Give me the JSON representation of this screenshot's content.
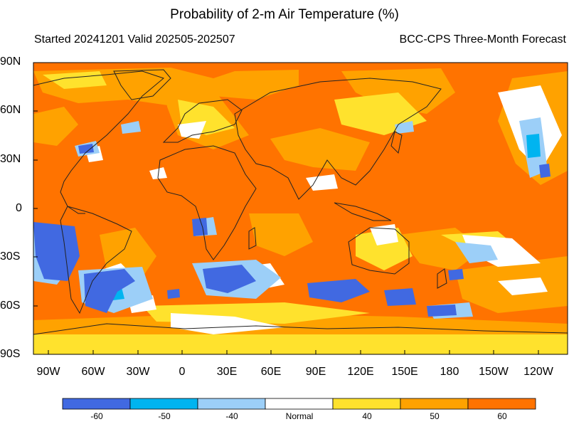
{
  "title": "Probability of 2-m Air Temperature (%)",
  "subtitle_left": "Started 20241201  Valid 202505-202507",
  "subtitle_right": "BCC-CPS Three-Month Forecast",
  "lat_labels": [
    "90N",
    "60N",
    "30N",
    "0",
    "30S",
    "60S",
    "90S"
  ],
  "lon_labels": [
    "90W",
    "60W",
    "30W",
    "0",
    "30E",
    "60E",
    "90E",
    "120E",
    "150E",
    "180",
    "150W",
    "120W"
  ],
  "legend": {
    "colors": [
      "#4169e1",
      "#00b4f0",
      "#9ccff8",
      "#ffffff",
      "#ffe22d",
      "#ffa200",
      "#ff7300"
    ],
    "labels": [
      "-60",
      "-50",
      "-40",
      "Normal",
      "40",
      "50",
      "60"
    ]
  },
  "map_colors": {
    "dominant": "#ff7300",
    "ocean_mid": "#ffa200",
    "light": "#ffe22d",
    "normal": "#ffffff",
    "cold_light": "#9ccff8",
    "cold_mid": "#00b4f0",
    "cold_strong": "#4169e1",
    "coastline": "#222222"
  }
}
